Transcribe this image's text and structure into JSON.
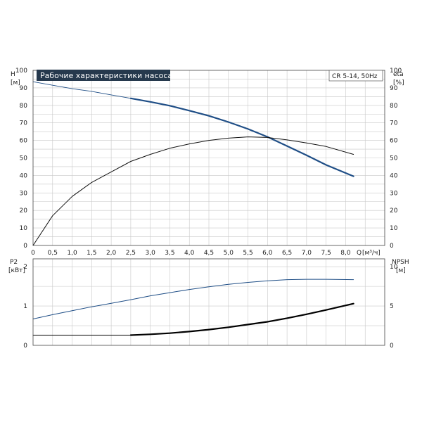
{
  "header": {
    "title": "Рабочие характеристики насоса",
    "model": "CR 5-14, 50Hz"
  },
  "colors": {
    "head_curve": "#1f4e86",
    "power_curve": "#1f4e86",
    "efficiency_curve": "#111111",
    "npsh_curve": "#000000",
    "title_bg": "#26394d",
    "title_fg": "#ffffff"
  },
  "chart_data": [
    {
      "type": "line",
      "panel": "top",
      "left_axis": {
        "label": "H",
        "unit": "[м]",
        "ylim": [
          0,
          100
        ],
        "ticks": [
          "0",
          "10",
          "20",
          "30",
          "40",
          "50",
          "60",
          "70",
          "80",
          "90",
          "100"
        ]
      },
      "right_axis": {
        "label": "eta",
        "unit": "[%]",
        "ylim": [
          0,
          100
        ],
        "ticks": [
          "0",
          "10",
          "20",
          "30",
          "40",
          "50",
          "60",
          "70",
          "80",
          "90",
          "100"
        ]
      },
      "x_axis": {
        "label": "Q",
        "unit": "[м³/ч]",
        "xlim": [
          0,
          9
        ],
        "ticks": [
          "0",
          "0,5",
          "1,0",
          "1,5",
          "2,0",
          "2,5",
          "3,0",
          "3,5",
          "4,0",
          "4,5",
          "5,0",
          "5,5",
          "6,0",
          "6,5",
          "7,0",
          "7,5",
          "8,0"
        ]
      },
      "grid": true,
      "series": [
        {
          "id": "head",
          "axis": "left",
          "points": [
            [
              0,
              93.5
            ],
            [
              0.5,
              91.5
            ],
            [
              1.0,
              89.5
            ],
            [
              1.5,
              88
            ],
            [
              2.0,
              86
            ],
            [
              2.5,
              84
            ],
            [
              3.0,
              82
            ],
            [
              3.5,
              79.8
            ],
            [
              4.0,
              77
            ],
            [
              4.5,
              74
            ],
            [
              5.0,
              70.5
            ],
            [
              5.5,
              66.5
            ],
            [
              6.0,
              62
            ],
            [
              6.5,
              56.8
            ],
            [
              7.0,
              51.5
            ],
            [
              7.5,
              46
            ],
            [
              8.2,
              39.5
            ]
          ]
        },
        {
          "id": "efficiency",
          "axis": "right",
          "points": [
            [
              0,
              0
            ],
            [
              0.5,
              17
            ],
            [
              1.0,
              28
            ],
            [
              1.5,
              36
            ],
            [
              2.0,
              42
            ],
            [
              2.5,
              48
            ],
            [
              3.0,
              52
            ],
            [
              3.5,
              55.5
            ],
            [
              4.0,
              58
            ],
            [
              4.5,
              60
            ],
            [
              5.0,
              61.3
            ],
            [
              5.5,
              62
            ],
            [
              6.0,
              61.7
            ],
            [
              6.5,
              60.3
            ],
            [
              7.0,
              58.5
            ],
            [
              7.5,
              56.5
            ],
            [
              8.2,
              52
            ]
          ]
        }
      ]
    },
    {
      "type": "line",
      "panel": "bottom",
      "left_axis": {
        "label": "P2",
        "unit": "[кВт]",
        "ylim": [
          0,
          2.2
        ],
        "ticks": [
          "0",
          "1",
          "2"
        ]
      },
      "right_axis": {
        "label": "NPSH",
        "unit": "[м]",
        "ylim": [
          0,
          11
        ],
        "ticks": [
          "0",
          "5",
          "10"
        ]
      },
      "x_axis": {
        "xlim": [
          0,
          9
        ]
      },
      "grid": true,
      "series": [
        {
          "id": "power",
          "axis": "left",
          "points": [
            [
              0,
              0.67
            ],
            [
              0.5,
              0.78
            ],
            [
              1.0,
              0.88
            ],
            [
              1.5,
              0.98
            ],
            [
              2.0,
              1.07
            ],
            [
              2.5,
              1.16
            ],
            [
              3.0,
              1.26
            ],
            [
              3.5,
              1.34
            ],
            [
              4.0,
              1.42
            ],
            [
              4.5,
              1.49
            ],
            [
              5.0,
              1.55
            ],
            [
              5.5,
              1.6
            ],
            [
              6.0,
              1.64
            ],
            [
              6.5,
              1.67
            ],
            [
              7.0,
              1.68
            ],
            [
              7.5,
              1.68
            ],
            [
              8.2,
              1.67
            ]
          ]
        },
        {
          "id": "npsh",
          "axis": "right",
          "points": [
            [
              0,
              1.3
            ],
            [
              2.5,
              1.3
            ],
            [
              3.0,
              1.4
            ],
            [
              3.5,
              1.55
            ],
            [
              4.0,
              1.75
            ],
            [
              4.5,
              2.0
            ],
            [
              5.0,
              2.3
            ],
            [
              5.5,
              2.65
            ],
            [
              6.0,
              3.0
            ],
            [
              6.5,
              3.45
            ],
            [
              7.0,
              3.95
            ],
            [
              7.5,
              4.5
            ],
            [
              8.2,
              5.3
            ]
          ]
        }
      ]
    }
  ]
}
